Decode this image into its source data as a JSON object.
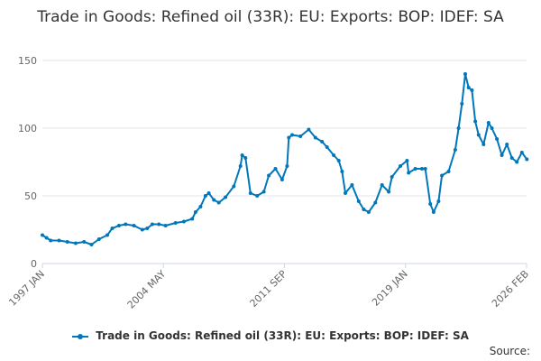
{
  "chart_data": {
    "type": "line",
    "title": "Trade in Goods: Refined oil (33R): EU: Exports: BOP: IDEF: SA",
    "xlabel": "",
    "ylabel": "",
    "ylim": [
      0,
      150
    ],
    "yticks": [
      0,
      50,
      100,
      150
    ],
    "x_range": [
      "1997 JAN",
      "2026 FEB"
    ],
    "xticks": [
      "1997 JAN",
      "2004 MAY",
      "2011 SEP",
      "2019 JAN",
      "2026 FEB"
    ],
    "grid": true,
    "legend": "bottom-center",
    "series": [
      {
        "name": "Trade in Goods: Refined oil (33R): EU: Exports: BOP: IDEF: SA",
        "color": "#0077bb",
        "x": [
          1997.0,
          1997.25,
          1997.5,
          1998.0,
          1998.5,
          1999.0,
          1999.5,
          1999.95,
          2000.4,
          2000.9,
          2001.2,
          2001.6,
          2002.0,
          2002.5,
          2003.0,
          2003.3,
          2003.6,
          2004.0,
          2004.4,
          2005.0,
          2005.5,
          2006.0,
          2006.2,
          2006.5,
          2006.8,
          2007.0,
          2007.3,
          2007.6,
          2008.0,
          2008.5,
          2008.9,
          2009.0,
          2009.2,
          2009.5,
          2009.9,
          2010.3,
          2010.6,
          2011.0,
          2011.4,
          2011.7,
          2011.8,
          2012.0,
          2012.5,
          2013.0,
          2013.4,
          2013.8,
          2014.1,
          2014.5,
          2014.8,
          2015.0,
          2015.2,
          2015.6,
          2016.0,
          2016.3,
          2016.6,
          2017.0,
          2017.4,
          2017.8,
          2018.0,
          2018.5,
          2018.9,
          2019.0,
          2019.4,
          2019.8,
          2020.0,
          2020.3,
          2020.5,
          2020.8,
          2021.0,
          2021.4,
          2021.8,
          2022.0,
          2022.2,
          2022.4,
          2022.6,
          2022.8,
          2023.0,
          2023.2,
          2023.5,
          2023.8,
          2024.0,
          2024.3,
          2024.6,
          2024.9,
          2025.2,
          2025.5,
          2025.8,
          2026.1
        ],
        "values": [
          21,
          19,
          17,
          17,
          16,
          15,
          16,
          14,
          18,
          21,
          26,
          28,
          29,
          28,
          25,
          26,
          29,
          29,
          28,
          30,
          31,
          33,
          38,
          42,
          50,
          52,
          47,
          45,
          49,
          57,
          72,
          80,
          78,
          52,
          50,
          53,
          65,
          70,
          62,
          72,
          93,
          95,
          94,
          99,
          93,
          90,
          86,
          80,
          76,
          68,
          52,
          58,
          46,
          40,
          38,
          45,
          58,
          53,
          64,
          72,
          76,
          67,
          70,
          70,
          70,
          44,
          38,
          46,
          65,
          68,
          84,
          100,
          118,
          140,
          130,
          128,
          105,
          95,
          88,
          104,
          100,
          92,
          80,
          88,
          78,
          75,
          82,
          77
        ]
      }
    ]
  },
  "legend": {
    "label": "Trade in Goods: Refined oil (33R): EU: Exports: BOP: IDEF: SA"
  },
  "source": {
    "label": "Source:"
  }
}
